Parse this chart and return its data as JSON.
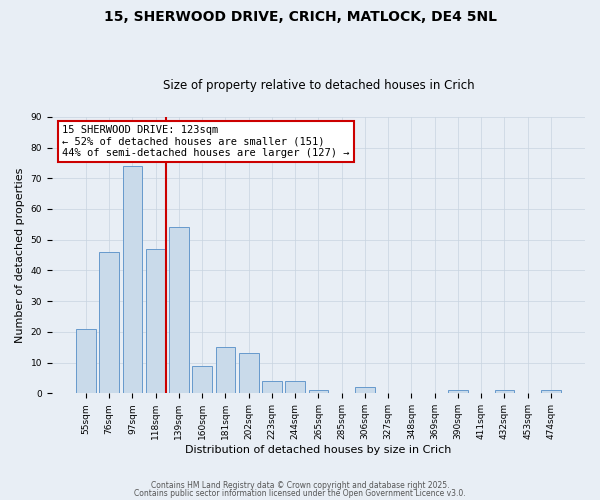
{
  "title_line1": "15, SHERWOOD DRIVE, CRICH, MATLOCK, DE4 5NL",
  "title_line2": "Size of property relative to detached houses in Crich",
  "xlabel": "Distribution of detached houses by size in Crich",
  "ylabel": "Number of detached properties",
  "bar_color": "#c9daea",
  "bar_edge_color": "#6699cc",
  "categories": [
    "55sqm",
    "76sqm",
    "97sqm",
    "118sqm",
    "139sqm",
    "160sqm",
    "181sqm",
    "202sqm",
    "223sqm",
    "244sqm",
    "265sqm",
    "285sqm",
    "306sqm",
    "327sqm",
    "348sqm",
    "369sqm",
    "390sqm",
    "411sqm",
    "432sqm",
    "453sqm",
    "474sqm"
  ],
  "values": [
    21,
    46,
    74,
    47,
    54,
    9,
    15,
    13,
    4,
    4,
    1,
    0,
    2,
    0,
    0,
    0,
    1,
    0,
    1,
    0,
    1
  ],
  "ylim": [
    0,
    90
  ],
  "yticks": [
    0,
    10,
    20,
    30,
    40,
    50,
    60,
    70,
    80,
    90
  ],
  "vline_color": "#cc0000",
  "annotation_title": "15 SHERWOOD DRIVE: 123sqm",
  "annotation_line1": "← 52% of detached houses are smaller (151)",
  "annotation_line2": "44% of semi-detached houses are larger (127) →",
  "annotation_box_color": "#cc0000",
  "background_color": "#e8eef5",
  "footer_line1": "Contains HM Land Registry data © Crown copyright and database right 2025.",
  "footer_line2": "Contains public sector information licensed under the Open Government Licence v3.0.",
  "grid_color": "#c8d4e0",
  "title_fontsize": 10,
  "subtitle_fontsize": 8.5,
  "ylabel_fontsize": 8,
  "xlabel_fontsize": 8,
  "tick_fontsize": 6.5,
  "ann_fontsize": 7.5
}
